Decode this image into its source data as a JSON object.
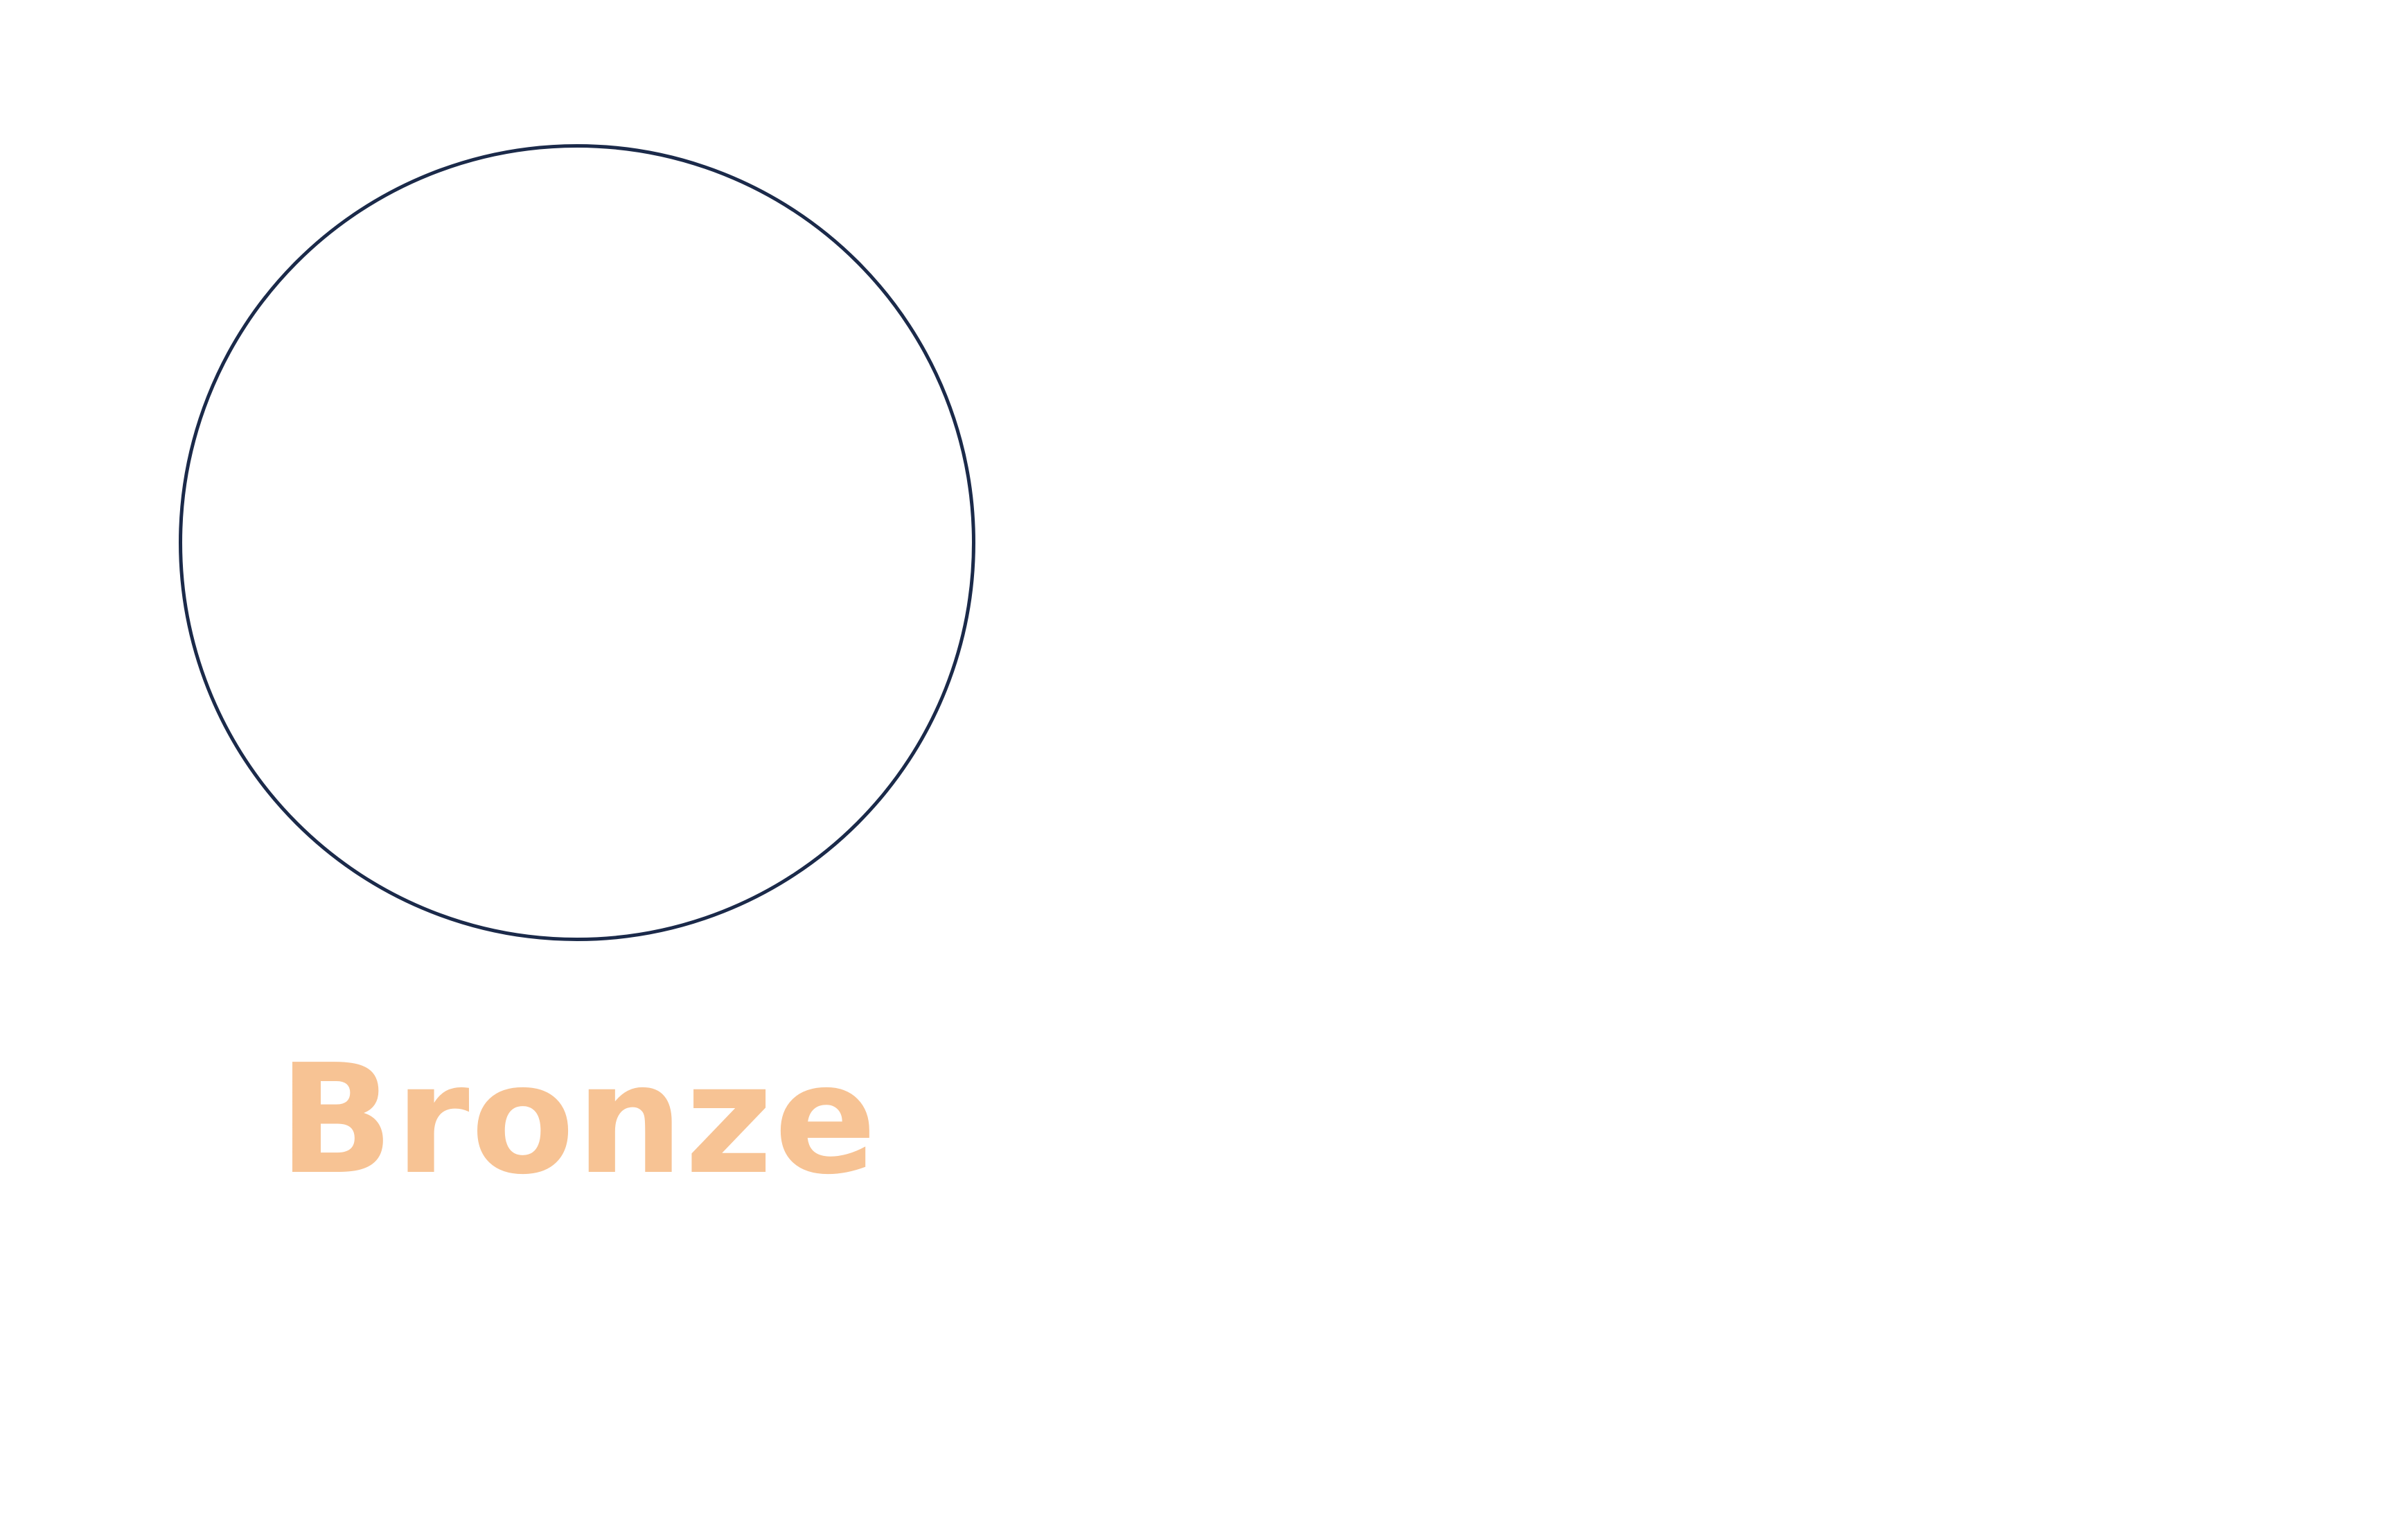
{
  "badge": {
    "label": "Bronze",
    "label_color": "#f7c394",
    "outline_color": "#1b2a4a",
    "shape": "circle-outline"
  }
}
